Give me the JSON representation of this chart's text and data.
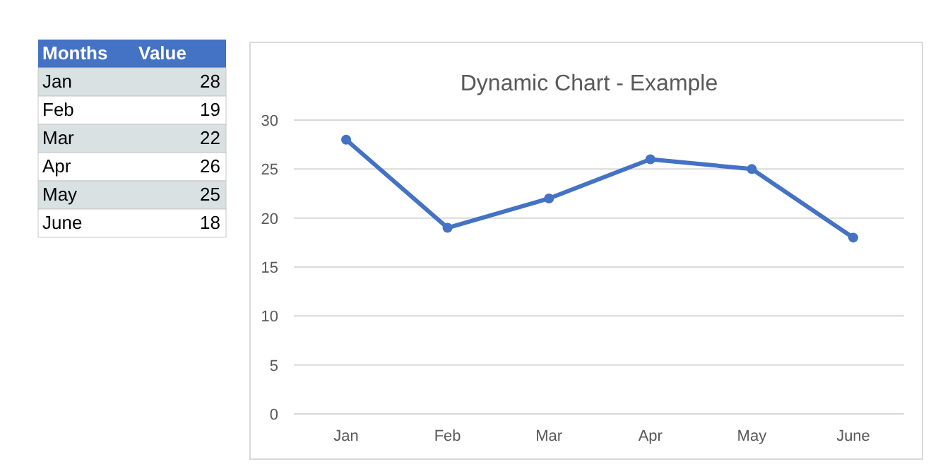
{
  "chart_data": [
    {
      "type": "other",
      "annotations": [
        "Months",
        "Value"
      ],
      "categories": [
        "Jan",
        "Feb",
        "Mar",
        "Apr",
        "May",
        "June"
      ],
      "values": [
        28,
        19,
        22,
        26,
        25,
        18
      ],
      "data_labels": true
    },
    {
      "type": "line",
      "title": "Dynamic Chart - Example",
      "categories": [
        "Jan",
        "Feb",
        "Mar",
        "Apr",
        "May",
        "June"
      ],
      "series": [
        {
          "color": "#4472c4",
          "values": [
            28,
            19,
            22,
            26,
            25,
            18
          ]
        }
      ],
      "ylim": [
        0,
        30
      ],
      "yticks": [
        0,
        5,
        10,
        15,
        20,
        25,
        30
      ],
      "grid": "y",
      "marker": "circle",
      "line_style": "solid"
    }
  ]
}
